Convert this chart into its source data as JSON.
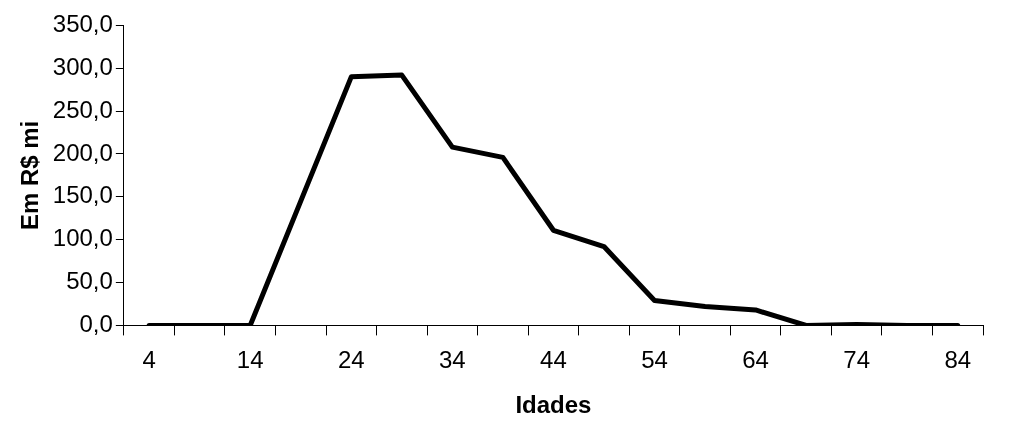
{
  "chart_data": {
    "type": "line",
    "xlabel": "Idades",
    "ylabel": "Em R$ mi",
    "categories": [
      "4",
      null,
      "14",
      null,
      "24",
      null,
      "34",
      null,
      "44",
      null,
      "54",
      null,
      "64",
      null,
      "74",
      null,
      "84"
    ],
    "series": [
      {
        "color": "#000000",
        "values": [
          0,
          0,
          0,
          145,
          290,
          292,
          208,
          196,
          111,
          92,
          29,
          22,
          18,
          0,
          1,
          0,
          0
        ]
      }
    ],
    "ylim": [
      0,
      350
    ],
    "yticks": [
      {
        "value": 0,
        "label": "0,0"
      },
      {
        "value": 50,
        "label": "50,0"
      },
      {
        "value": 100,
        "label": "100,0"
      },
      {
        "value": 150,
        "label": "150,0"
      },
      {
        "value": 200,
        "label": "200,0"
      },
      {
        "value": 250,
        "label": "250,0"
      },
      {
        "value": 300,
        "label": "300,0"
      },
      {
        "value": 350,
        "label": "350,0"
      }
    ],
    "grid": false,
    "legend": false,
    "marker": "none",
    "line_style": "solid"
  }
}
